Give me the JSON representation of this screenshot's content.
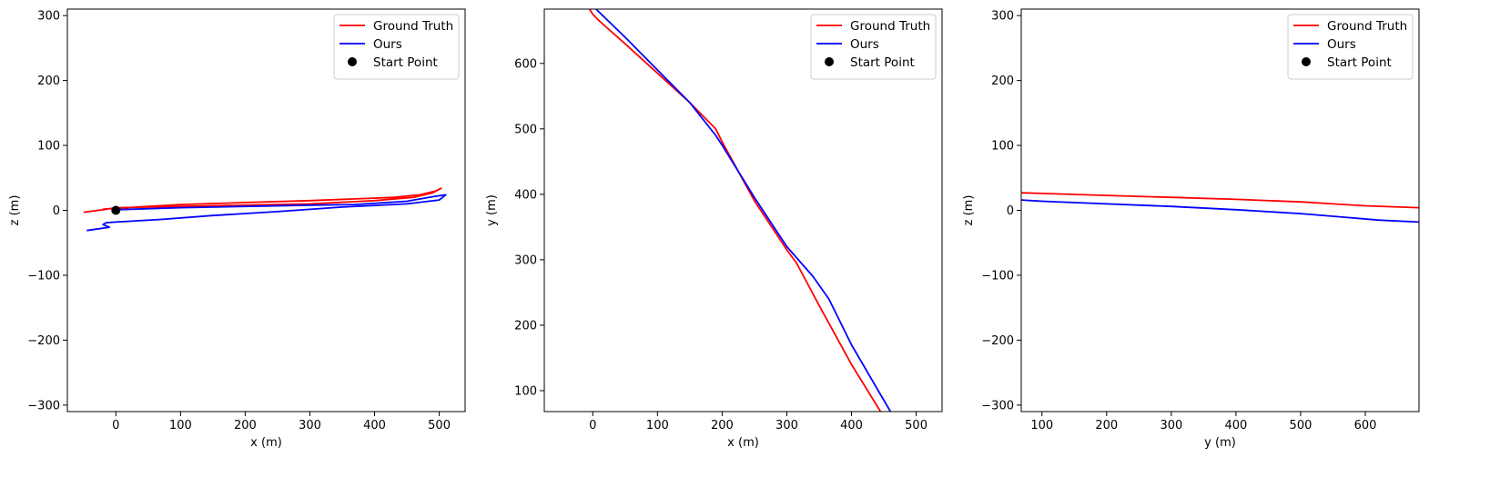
{
  "chart_data": [
    {
      "type": "line",
      "xlabel": "x (m)",
      "ylabel": "z (m)",
      "xlim": [
        -75,
        540
      ],
      "ylim": [
        -310,
        310
      ],
      "xticks": [
        0,
        100,
        200,
        300,
        400,
        500
      ],
      "yticks": [
        -300,
        -200,
        -100,
        0,
        100,
        200,
        300
      ],
      "legend_position": "top-right",
      "series": [
        {
          "name": "Ground Truth",
          "color": "#ff0000",
          "x": [
            -50,
            -20,
            0,
            100,
            200,
            300,
            400,
            460,
            490,
            503,
            495,
            470,
            430,
            380,
            300,
            200,
            100,
            50,
            0,
            -20
          ],
          "y": [
            -3,
            1,
            4,
            6,
            8,
            10,
            15,
            20,
            27,
            34,
            30,
            24,
            20,
            18,
            15,
            12,
            9,
            6,
            3,
            2
          ]
        },
        {
          "name": "Ours",
          "color": "#0000ff",
          "x": [
            -45,
            -10,
            -20,
            -15,
            0,
            70,
            150,
            250,
            350,
            450,
            500,
            510,
            490,
            450,
            370,
            300,
            200,
            100,
            0
          ],
          "y": [
            -31,
            -26,
            -22,
            -19,
            -18,
            -14,
            -8,
            -2,
            5,
            10,
            16,
            24,
            21,
            14,
            9,
            8,
            6,
            4,
            1
          ]
        },
        {
          "name": "Start Point",
          "color": "#000000",
          "marker": "circle",
          "x": [
            0
          ],
          "y": [
            0
          ]
        }
      ]
    },
    {
      "type": "line",
      "xlabel": "x (m)",
      "ylabel": "y (m)",
      "xlim": [
        -75,
        540
      ],
      "ylim": [
        68,
        683
      ],
      "xticks": [
        0,
        100,
        200,
        300,
        400,
        500
      ],
      "yticks": [
        100,
        200,
        300,
        400,
        500,
        600
      ],
      "legend_position": "top-right",
      "series": [
        {
          "name": "Ground Truth",
          "color": "#ff0000",
          "x": [
            -5,
            0,
            10,
            50,
            100,
            150,
            190,
            200,
            250,
            300,
            315,
            350,
            400,
            450
          ],
          "y": [
            683,
            675,
            665,
            630,
            585,
            540,
            500,
            480,
            390,
            315,
            295,
            230,
            140,
            60
          ]
        },
        {
          "name": "Ours",
          "color": "#0000ff",
          "x": [
            5,
            50,
            100,
            150,
            190,
            200,
            250,
            300,
            340,
            365,
            400,
            465
          ],
          "y": [
            683,
            640,
            590,
            540,
            490,
            475,
            395,
            320,
            275,
            240,
            170,
            60
          ]
        },
        {
          "name": "Start Point",
          "color": "#000000",
          "marker": "circle",
          "x": [],
          "y": []
        }
      ]
    },
    {
      "type": "line",
      "xlabel": "y (m)",
      "ylabel": "z (m)",
      "xlim": [
        68,
        683
      ],
      "ylim": [
        -310,
        310
      ],
      "xticks": [
        100,
        200,
        300,
        400,
        500,
        600
      ],
      "yticks": [
        -300,
        -200,
        -100,
        0,
        100,
        200,
        300
      ],
      "legend_position": "top-right",
      "series": [
        {
          "name": "Ground Truth",
          "color": "#ff0000",
          "x": [
            68,
            100,
            200,
            300,
            400,
            500,
            550,
            600,
            683
          ],
          "y": [
            27,
            26,
            23,
            20,
            17,
            13,
            10,
            7,
            4
          ]
        },
        {
          "name": "Ours",
          "color": "#0000ff",
          "x": [
            68,
            100,
            200,
            300,
            400,
            500,
            560,
            620,
            683
          ],
          "y": [
            16,
            14,
            10,
            6,
            1,
            -5,
            -10,
            -15,
            -18
          ]
        },
        {
          "name": "Start Point",
          "color": "#000000",
          "marker": "circle",
          "x": [],
          "y": []
        }
      ]
    }
  ]
}
